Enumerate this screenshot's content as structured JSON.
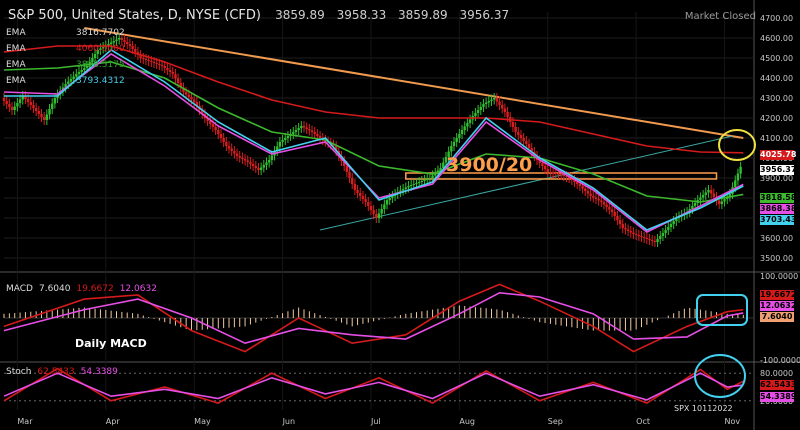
{
  "header": {
    "title": "S&P 500, United States, D, NYSE (CFD)",
    "open": "3859.89",
    "high": "3958.33",
    "low": "3859.89",
    "close": "3956.37",
    "market_status": "Market Closed"
  },
  "ema_labels": [
    {
      "name": "EMA",
      "value": "3816.7702",
      "color": "#d8d8d8"
    },
    {
      "name": "EMA",
      "value": "4060.0000",
      "color": "#d82020"
    },
    {
      "name": "EMA",
      "value": "3828.5175",
      "color": "#2fa02f"
    },
    {
      "name": "EMA",
      "value": "3793.4312",
      "color": "#46c8e6"
    }
  ],
  "annotation": "3900/20",
  "macd_label": {
    "name": "MACD",
    "value1": "7.6040",
    "value2": "19.6672",
    "value3": "12.0632"
  },
  "daily_macd": "Daily MACD",
  "stoch_label": {
    "name": "Stoch",
    "value1": "62.5433",
    "value2": "54.3389"
  },
  "watermark": "SPX 10112022",
  "price_tags": [
    {
      "value": "4025.78",
      "color": "#d41a1a",
      "text_color": "#ffffff"
    },
    {
      "value": "3956.37",
      "color": "#ffffff",
      "text_color": "#000000"
    },
    {
      "value": "3818.58",
      "color": "#3eb82e",
      "text_color": "#000000"
    },
    {
      "value": "3868.38",
      "color": "#e64fe6",
      "text_color": "#000000"
    },
    {
      "value": "3703.43",
      "color": "#42d2f0",
      "text_color": "#000000"
    }
  ],
  "macd_tags": [
    {
      "value": "19.6672",
      "color": "#d41a1a"
    },
    {
      "value": "12.0632",
      "color": "#e64fe6"
    },
    {
      "value": "7.6040",
      "color": "#f0a070"
    }
  ],
  "stoch_tags": [
    {
      "value": "62.5433",
      "color": "#d41a1a"
    },
    {
      "value": "54.3389",
      "color": "#e64fe6"
    }
  ],
  "chart_data": {
    "type": "line",
    "x_labels": [
      "Mar",
      "Apr",
      "May",
      "Jun",
      "Jul",
      "Aug",
      "Sep",
      "Oct",
      "Nov"
    ],
    "price_axis": [
      3500,
      3600,
      3700,
      3800,
      3900,
      4000,
      4100,
      4200,
      4300,
      4400,
      4500,
      4600,
      4700
    ],
    "ylim": [
      3450,
      4730
    ],
    "series": [
      {
        "name": "Price",
        "color": "#e8e8e8",
        "values": [
          [
            0,
            4300
          ],
          [
            4,
            4240
          ],
          [
            8,
            4310
          ],
          [
            12,
            4250
          ],
          [
            16,
            4190
          ],
          [
            20,
            4300
          ],
          [
            24,
            4370
          ],
          [
            28,
            4420
          ],
          [
            32,
            4460
          ],
          [
            36,
            4540
          ],
          [
            40,
            4570
          ],
          [
            44,
            4600
          ],
          [
            48,
            4560
          ],
          [
            52,
            4500
          ],
          [
            56,
            4480
          ],
          [
            60,
            4460
          ],
          [
            64,
            4420
          ],
          [
            68,
            4330
          ],
          [
            72,
            4280
          ],
          [
            76,
            4200
          ],
          [
            80,
            4140
          ],
          [
            84,
            4060
          ],
          [
            88,
            4010
          ],
          [
            92,
            3980
          ],
          [
            96,
            3940
          ],
          [
            100,
            3990
          ],
          [
            104,
            4080
          ],
          [
            108,
            4120
          ],
          [
            112,
            4160
          ],
          [
            116,
            4130
          ],
          [
            120,
            4090
          ],
          [
            124,
            4060
          ],
          [
            128,
            3960
          ],
          [
            132,
            3840
          ],
          [
            136,
            3780
          ],
          [
            140,
            3700
          ],
          [
            144,
            3790
          ],
          [
            148,
            3830
          ],
          [
            152,
            3860
          ],
          [
            156,
            3880
          ],
          [
            160,
            3900
          ],
          [
            164,
            3950
          ],
          [
            168,
            4060
          ],
          [
            172,
            4140
          ],
          [
            176,
            4210
          ],
          [
            180,
            4270
          ],
          [
            184,
            4300
          ],
          [
            188,
            4230
          ],
          [
            192,
            4130
          ],
          [
            196,
            4070
          ],
          [
            200,
            3990
          ],
          [
            204,
            3930
          ],
          [
            208,
            3920
          ],
          [
            212,
            3900
          ],
          [
            216,
            3860
          ],
          [
            220,
            3810
          ],
          [
            224,
            3780
          ],
          [
            228,
            3730
          ],
          [
            232,
            3650
          ],
          [
            236,
            3620
          ],
          [
            240,
            3600
          ],
          [
            244,
            3580
          ],
          [
            248,
            3640
          ],
          [
            252,
            3700
          ],
          [
            256,
            3730
          ],
          [
            260,
            3790
          ],
          [
            264,
            3840
          ],
          [
            268,
            3770
          ],
          [
            272,
            3820
          ],
          [
            276,
            3956
          ]
        ]
      },
      {
        "name": "EMA",
        "color": "#d41a1a",
        "values": [
          [
            0,
            4530
          ],
          [
            20,
            4560
          ],
          [
            40,
            4560
          ],
          [
            60,
            4480
          ],
          [
            80,
            4380
          ],
          [
            100,
            4290
          ],
          [
            120,
            4230
          ],
          [
            140,
            4200
          ],
          [
            160,
            4200
          ],
          [
            180,
            4200
          ],
          [
            200,
            4180
          ],
          [
            220,
            4120
          ],
          [
            240,
            4060
          ],
          [
            260,
            4030
          ],
          [
            276,
            4026
          ]
        ]
      },
      {
        "name": "EMA",
        "color": "#3cb82c",
        "values": [
          [
            0,
            4440
          ],
          [
            20,
            4450
          ],
          [
            40,
            4480
          ],
          [
            60,
            4400
          ],
          [
            80,
            4250
          ],
          [
            100,
            4130
          ],
          [
            120,
            4090
          ],
          [
            140,
            3960
          ],
          [
            160,
            3920
          ],
          [
            180,
            4020
          ],
          [
            200,
            4000
          ],
          [
            220,
            3920
          ],
          [
            240,
            3810
          ],
          [
            260,
            3780
          ],
          [
            276,
            3818
          ]
        ]
      },
      {
        "name": "EMA",
        "color": "#e64fe6",
        "values": [
          [
            0,
            4330
          ],
          [
            20,
            4320
          ],
          [
            40,
            4520
          ],
          [
            60,
            4360
          ],
          [
            80,
            4160
          ],
          [
            100,
            4020
          ],
          [
            120,
            4080
          ],
          [
            140,
            3800
          ],
          [
            160,
            3870
          ],
          [
            180,
            4180
          ],
          [
            200,
            3990
          ],
          [
            220,
            3840
          ],
          [
            240,
            3630
          ],
          [
            260,
            3760
          ],
          [
            276,
            3868
          ]
        ]
      },
      {
        "name": "EMA",
        "color": "#42d2f0",
        "values": [
          [
            0,
            4310
          ],
          [
            20,
            4310
          ],
          [
            40,
            4540
          ],
          [
            60,
            4380
          ],
          [
            80,
            4180
          ],
          [
            100,
            4030
          ],
          [
            120,
            4100
          ],
          [
            140,
            3790
          ],
          [
            160,
            3880
          ],
          [
            180,
            4200
          ],
          [
            200,
            4000
          ],
          [
            220,
            3850
          ],
          [
            240,
            3640
          ],
          [
            260,
            3750
          ],
          [
            276,
            3860
          ]
        ]
      },
      {
        "name": "MACD",
        "color": "#d41a1a",
        "values": [
          [
            0,
            -20
          ],
          [
            30,
            45
          ],
          [
            50,
            55
          ],
          [
            70,
            -30
          ],
          [
            90,
            -80
          ],
          [
            110,
            0
          ],
          [
            130,
            -60
          ],
          [
            150,
            -40
          ],
          [
            170,
            40
          ],
          [
            185,
            80
          ],
          [
            200,
            40
          ],
          [
            220,
            -20
          ],
          [
            235,
            -80
          ],
          [
            255,
            -20
          ],
          [
            270,
            15
          ],
          [
            276,
            19.7
          ]
        ]
      },
      {
        "name": "Signal",
        "color": "#e64fe6",
        "values": [
          [
            0,
            -30
          ],
          [
            30,
            20
          ],
          [
            50,
            45
          ],
          [
            70,
            0
          ],
          [
            90,
            -60
          ],
          [
            110,
            -25
          ],
          [
            130,
            -40
          ],
          [
            150,
            -50
          ],
          [
            170,
            10
          ],
          [
            185,
            60
          ],
          [
            200,
            50
          ],
          [
            220,
            10
          ],
          [
            235,
            -50
          ],
          [
            255,
            -45
          ],
          [
            270,
            5
          ],
          [
            276,
            12.1
          ]
        ]
      },
      {
        "name": "%K",
        "color": "#d41a1a",
        "values": [
          [
            0,
            20
          ],
          [
            20,
            90
          ],
          [
            40,
            20
          ],
          [
            60,
            50
          ],
          [
            80,
            15
          ],
          [
            100,
            80
          ],
          [
            120,
            25
          ],
          [
            140,
            70
          ],
          [
            160,
            15
          ],
          [
            180,
            85
          ],
          [
            200,
            20
          ],
          [
            220,
            60
          ],
          [
            240,
            15
          ],
          [
            260,
            88
          ],
          [
            270,
            45
          ],
          [
            276,
            62.5
          ]
        ]
      },
      {
        "name": "%D",
        "color": "#e64fe6",
        "values": [
          [
            0,
            30
          ],
          [
            20,
            80
          ],
          [
            40,
            30
          ],
          [
            60,
            45
          ],
          [
            80,
            25
          ],
          [
            100,
            70
          ],
          [
            120,
            35
          ],
          [
            140,
            60
          ],
          [
            160,
            25
          ],
          [
            180,
            80
          ],
          [
            200,
            30
          ],
          [
            220,
            55
          ],
          [
            240,
            22
          ],
          [
            260,
            80
          ],
          [
            270,
            50
          ],
          [
            276,
            54.3
          ]
        ]
      }
    ],
    "macd_axis": [
      -100,
      100
    ],
    "stoch_axis": [
      20,
      80
    ]
  }
}
